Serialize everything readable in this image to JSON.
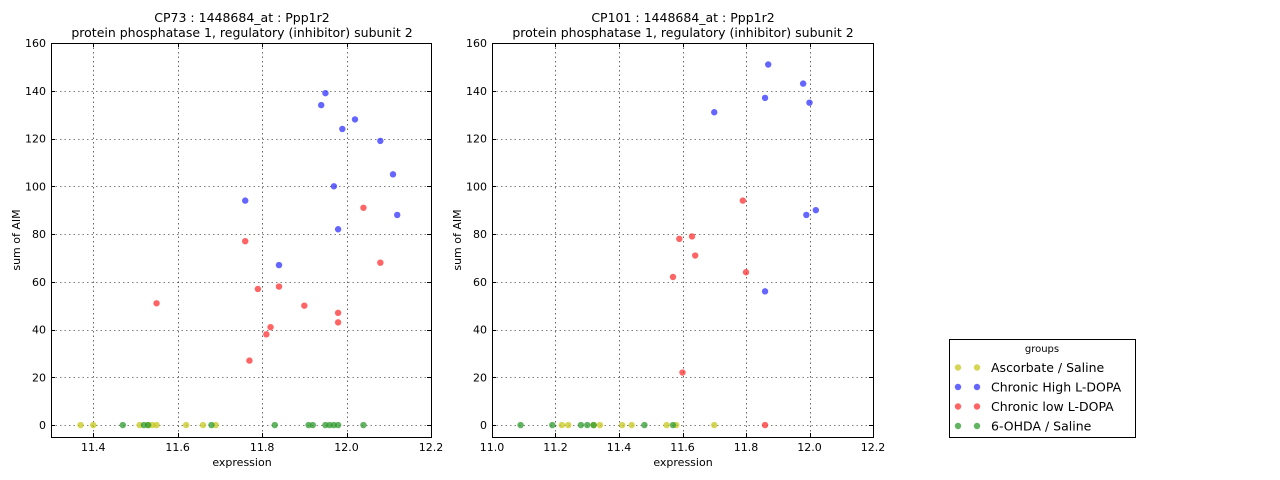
{
  "figure": {
    "colors": {
      "Ascorbate / Saline": "#c8c81e",
      "Chronic High L-DOPA": "#3232ff",
      "Chronic low L-DOPA": "#ff3232",
      "6-OHDA / Saline": "#2e9a2e"
    }
  },
  "legend": {
    "title": "groups",
    "placement": "right",
    "entries": [
      "Ascorbate / Saline",
      "Chronic High L-DOPA",
      "Chronic low L-DOPA",
      "6-OHDA / Saline"
    ]
  },
  "chart_data": [
    {
      "type": "scatter",
      "title_line1": "CP73 : 1448684_at : Ppp1r2",
      "title_line2": "protein phosphatase 1, regulatory (inhibitor) subunit 2",
      "xlabel": "expression",
      "ylabel": "sum of AIM",
      "xlim": [
        11.3,
        12.2
      ],
      "ylim": [
        -5,
        160
      ],
      "xticks": [
        "11.4",
        "11.6",
        "11.8",
        "12.0",
        "12.2"
      ],
      "yticks": [
        "0",
        "20",
        "40",
        "60",
        "80",
        "100",
        "120",
        "140",
        "160"
      ],
      "xtick_values": [
        11.4,
        11.6,
        11.8,
        12.0,
        12.2
      ],
      "ytick_values": [
        0,
        20,
        40,
        60,
        80,
        100,
        120,
        140,
        160
      ],
      "grid": true,
      "series": [
        {
          "name": "Ascorbate / Saline",
          "x": [
            11.37,
            11.4,
            11.51,
            11.53,
            11.54,
            11.55,
            11.62,
            11.66,
            11.69
          ],
          "y": [
            0,
            0,
            0,
            0,
            0,
            0,
            0,
            0,
            0
          ]
        },
        {
          "name": "Chronic High L-DOPA",
          "x": [
            11.76,
            11.84,
            11.94,
            11.95,
            11.97,
            11.98,
            11.99,
            12.02,
            12.08,
            12.11,
            12.12
          ],
          "y": [
            94,
            67,
            134,
            139,
            100,
            82,
            124,
            128,
            119,
            105,
            88
          ]
        },
        {
          "name": "Chronic low L-DOPA",
          "x": [
            11.55,
            11.76,
            11.77,
            11.79,
            11.81,
            11.82,
            11.84,
            11.9,
            11.98,
            11.98,
            12.04,
            12.08
          ],
          "y": [
            51,
            77,
            27,
            57,
            38,
            41,
            58,
            50,
            47,
            43,
            91,
            68
          ]
        },
        {
          "name": "6-OHDA / Saline",
          "x": [
            11.47,
            11.52,
            11.53,
            11.68,
            11.83,
            11.91,
            11.92,
            11.95,
            11.96,
            11.97,
            11.98,
            12.04
          ],
          "y": [
            0,
            0,
            0,
            0,
            0,
            0,
            0,
            0,
            0,
            0,
            0,
            0
          ]
        }
      ]
    },
    {
      "type": "scatter",
      "title_line1": "CP101 : 1448684_at : Ppp1r2",
      "title_line2": "protein phosphatase 1, regulatory (inhibitor) subunit 2",
      "xlabel": "expression",
      "ylabel": "sum of AIM",
      "xlim": [
        11.0,
        12.2
      ],
      "ylim": [
        -5,
        160
      ],
      "xticks": [
        "11.0",
        "11.2",
        "11.4",
        "11.6",
        "11.8",
        "12.0",
        "12.2"
      ],
      "yticks": [
        "0",
        "20",
        "40",
        "60",
        "80",
        "100",
        "120",
        "140",
        "160"
      ],
      "xtick_values": [
        11.0,
        11.2,
        11.4,
        11.6,
        11.8,
        12.0,
        12.2
      ],
      "ytick_values": [
        0,
        20,
        40,
        60,
        80,
        100,
        120,
        140,
        160
      ],
      "grid": true,
      "series": [
        {
          "name": "Ascorbate / Saline",
          "x": [
            11.22,
            11.24,
            11.32,
            11.34,
            11.41,
            11.44,
            11.55,
            11.58,
            11.7
          ],
          "y": [
            0,
            0,
            0,
            0,
            0,
            0,
            0,
            0,
            0
          ]
        },
        {
          "name": "Chronic High L-DOPA",
          "x": [
            11.7,
            11.86,
            11.87,
            11.86,
            11.98,
            12.0,
            11.99,
            12.02
          ],
          "y": [
            131,
            137,
            151,
            56,
            143,
            135,
            88,
            90
          ]
        },
        {
          "name": "Chronic low L-DOPA",
          "x": [
            11.57,
            11.59,
            11.6,
            11.63,
            11.64,
            11.79,
            11.8,
            11.86
          ],
          "y": [
            62,
            78,
            22,
            79,
            71,
            94,
            64,
            0
          ]
        },
        {
          "name": "6-OHDA / Saline",
          "x": [
            11.09,
            11.19,
            11.28,
            11.3,
            11.32,
            11.48,
            11.57
          ],
          "y": [
            0,
            0,
            0,
            0,
            0,
            0,
            0
          ]
        }
      ]
    }
  ]
}
